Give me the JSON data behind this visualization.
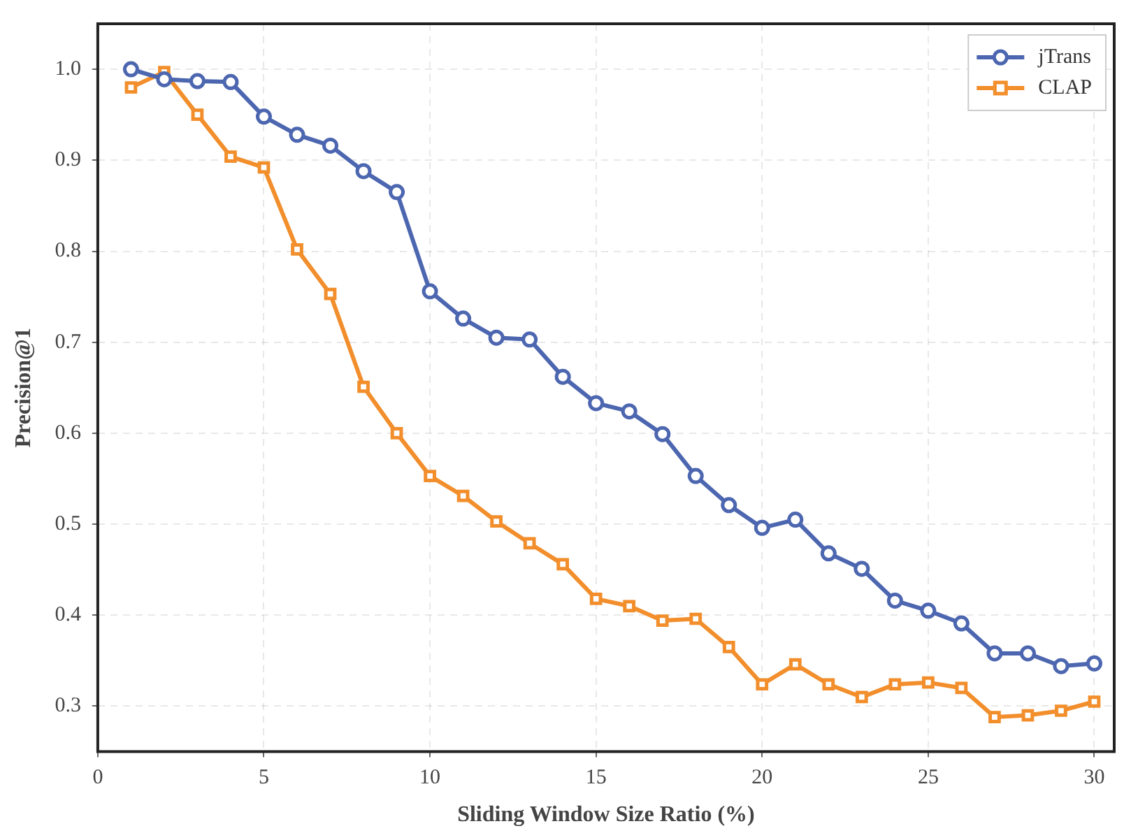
{
  "chart_data": {
    "type": "line",
    "xlabel": "Sliding Window Size Ratio (%)",
    "ylabel": "Precision@1",
    "x": [
      1,
      2,
      3,
      4,
      5,
      6,
      7,
      8,
      9,
      10,
      11,
      12,
      13,
      14,
      15,
      16,
      17,
      18,
      19,
      20,
      21,
      22,
      23,
      24,
      25,
      26,
      27,
      28,
      29,
      30
    ],
    "series": [
      {
        "name": "jTrans",
        "color": "#4c66b0",
        "marker": "circle",
        "values": [
          1.0,
          0.989,
          0.987,
          0.986,
          0.948,
          0.928,
          0.916,
          0.888,
          0.865,
          0.756,
          0.726,
          0.705,
          0.703,
          0.662,
          0.633,
          0.624,
          0.599,
          0.553,
          0.521,
          0.496,
          0.505,
          0.468,
          0.451,
          0.416,
          0.405,
          0.391,
          0.358,
          0.358,
          0.344,
          0.347
        ]
      },
      {
        "name": "CLAP",
        "color": "#f28e2b",
        "marker": "square",
        "values": [
          0.98,
          0.997,
          0.95,
          0.904,
          0.892,
          0.802,
          0.753,
          0.651,
          0.6,
          0.553,
          0.531,
          0.503,
          0.479,
          0.456,
          0.418,
          0.41,
          0.394,
          0.396,
          0.365,
          0.324,
          0.346,
          0.324,
          0.31,
          0.324,
          0.326,
          0.32,
          0.288,
          0.29,
          0.295,
          0.305
        ]
      }
    ],
    "xlim": [
      0,
      30.6
    ],
    "xticks": [
      0,
      5,
      10,
      15,
      20,
      25,
      30
    ],
    "ylim": [
      0.25,
      1.05
    ],
    "yticks": [
      0.3,
      0.4,
      0.5,
      0.6,
      0.7,
      0.8,
      0.9,
      {
        "value": 1,
        "label": "1.0"
      }
    ],
    "grid": true,
    "legend": "top right",
    "line_style": "solid"
  }
}
